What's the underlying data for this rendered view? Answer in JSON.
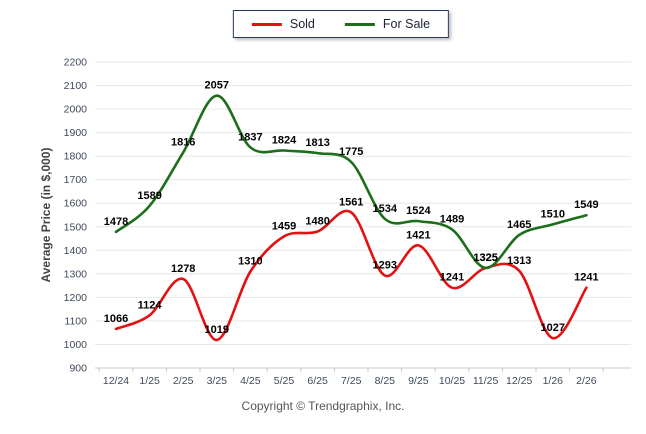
{
  "chart_data": {
    "type": "line",
    "title": "",
    "xlabel": "",
    "ylabel": "Average Price (in $,000)",
    "categories": [
      "12/24",
      "1/25",
      "2/25",
      "3/25",
      "4/25",
      "5/25",
      "6/25",
      "7/25",
      "8/25",
      "9/25",
      "10/25",
      "11/25",
      "12/25",
      "1/26",
      "2/26"
    ],
    "series": [
      {
        "name": "Sold",
        "color": "#e31212",
        "values": [
          1066,
          1124,
          1278,
          1019,
          1310,
          1459,
          1480,
          1561,
          1293,
          1421,
          1241,
          1325,
          1313,
          1027,
          1241
        ]
      },
      {
        "name": "For Sale",
        "color": "#1c6e1c",
        "values": [
          1478,
          1589,
          1816,
          2057,
          1837,
          1824,
          1813,
          1775,
          1534,
          1524,
          1489,
          1325,
          1465,
          1510,
          1549
        ]
      }
    ],
    "ylim": [
      900,
      2200
    ],
    "ytick_step": 100,
    "grid": "horizontal",
    "legend_position": "top-center",
    "data_labels": true
  },
  "footer": {
    "copyright": "Copyright © Trendgraphix, Inc."
  },
  "colors": {
    "background": "#ffffff",
    "grid": "#e6e6e6",
    "axis_line": "#c9c9c9",
    "tick_text": "#3f4a5a",
    "data_label": "#000000",
    "axis_title": "#444444",
    "legend_border": "#24395e",
    "footer_text": "#555555"
  }
}
